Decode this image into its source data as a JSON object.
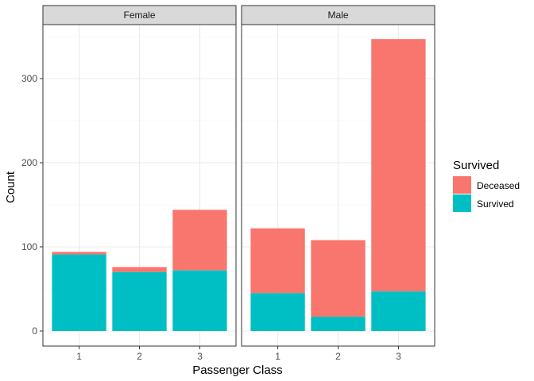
{
  "chart_data": {
    "type": "bar",
    "stacked": true,
    "facet_by": "Sex",
    "facets": [
      {
        "label": "Female",
        "categories": [
          "1",
          "2",
          "3"
        ],
        "series": [
          {
            "name": "Survived",
            "values": [
              91,
              70,
              72
            ]
          },
          {
            "name": "Deceased",
            "values": [
              3,
              6,
              72
            ]
          }
        ]
      },
      {
        "label": "Male",
        "categories": [
          "1",
          "2",
          "3"
        ],
        "series": [
          {
            "name": "Survived",
            "values": [
              45,
              17,
              47
            ]
          },
          {
            "name": "Deceased",
            "values": [
              77,
              91,
              300
            ]
          }
        ]
      }
    ],
    "xlabel": "Passenger Class",
    "ylabel": "Count",
    "ylim": [
      0,
      365
    ],
    "yticks": [
      0,
      100,
      200,
      300
    ],
    "legend": {
      "title": "Survived",
      "position": "right",
      "entries": [
        "Deceased",
        "Survived"
      ]
    },
    "colors": {
      "Deceased": "#F8766D",
      "Survived": "#00BFC4"
    },
    "grid": true,
    "theme": "bw"
  }
}
